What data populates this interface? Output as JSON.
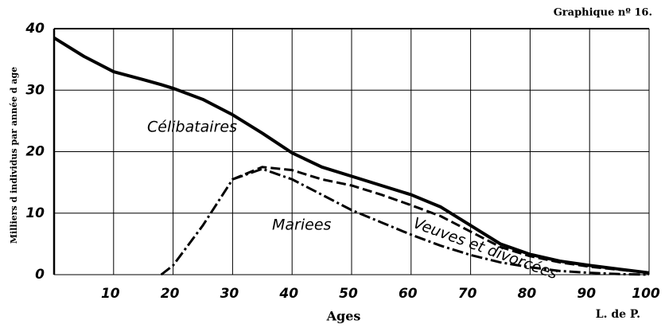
{
  "chart_data": {
    "type": "line",
    "title": "Graphique nº 16.",
    "ylabel": "Milliers d individus par année d age",
    "xlabel": "Ages",
    "source": "L. de P.",
    "x": [
      0,
      5,
      10,
      15,
      18,
      20,
      25,
      30,
      35,
      40,
      45,
      50,
      55,
      60,
      65,
      70,
      75,
      80,
      85,
      90,
      95,
      100
    ],
    "series": [
      {
        "name": "Célibataires",
        "color": "#000000",
        "dash": "solid",
        "values": [
          38.5,
          35.5,
          33,
          31.7,
          30.9,
          30.3,
          28.5,
          26,
          23,
          19.8,
          17.5,
          16,
          14.5,
          13,
          11,
          8,
          5,
          3.3,
          2.2,
          1.5,
          0.9,
          0.3
        ]
      },
      {
        "name": "Veuves et divorcées",
        "color": "#000000",
        "dash": "dashed",
        "values": [
          null,
          null,
          null,
          null,
          null,
          null,
          null,
          15.5,
          17.5,
          17,
          15.5,
          14.5,
          13,
          11.3,
          9.5,
          7,
          4.5,
          3,
          2,
          1.3,
          0.8,
          0.3
        ]
      },
      {
        "name": "Mariees",
        "color": "#000000",
        "dash": "dashdot",
        "values": [
          null,
          null,
          null,
          null,
          0,
          1.5,
          8,
          15.5,
          17.2,
          15.5,
          13,
          10.5,
          8.5,
          6.5,
          4.7,
          3.2,
          2,
          1.2,
          0.6,
          0.3,
          0.1,
          0
        ]
      }
    ],
    "xlim": [
      0,
      100
    ],
    "xticks": [
      10,
      20,
      30,
      40,
      50,
      60,
      70,
      80,
      90,
      100
    ],
    "ylim": [
      0,
      40
    ],
    "yticks": [
      0,
      10,
      20,
      30,
      40
    ],
    "grid": true
  }
}
